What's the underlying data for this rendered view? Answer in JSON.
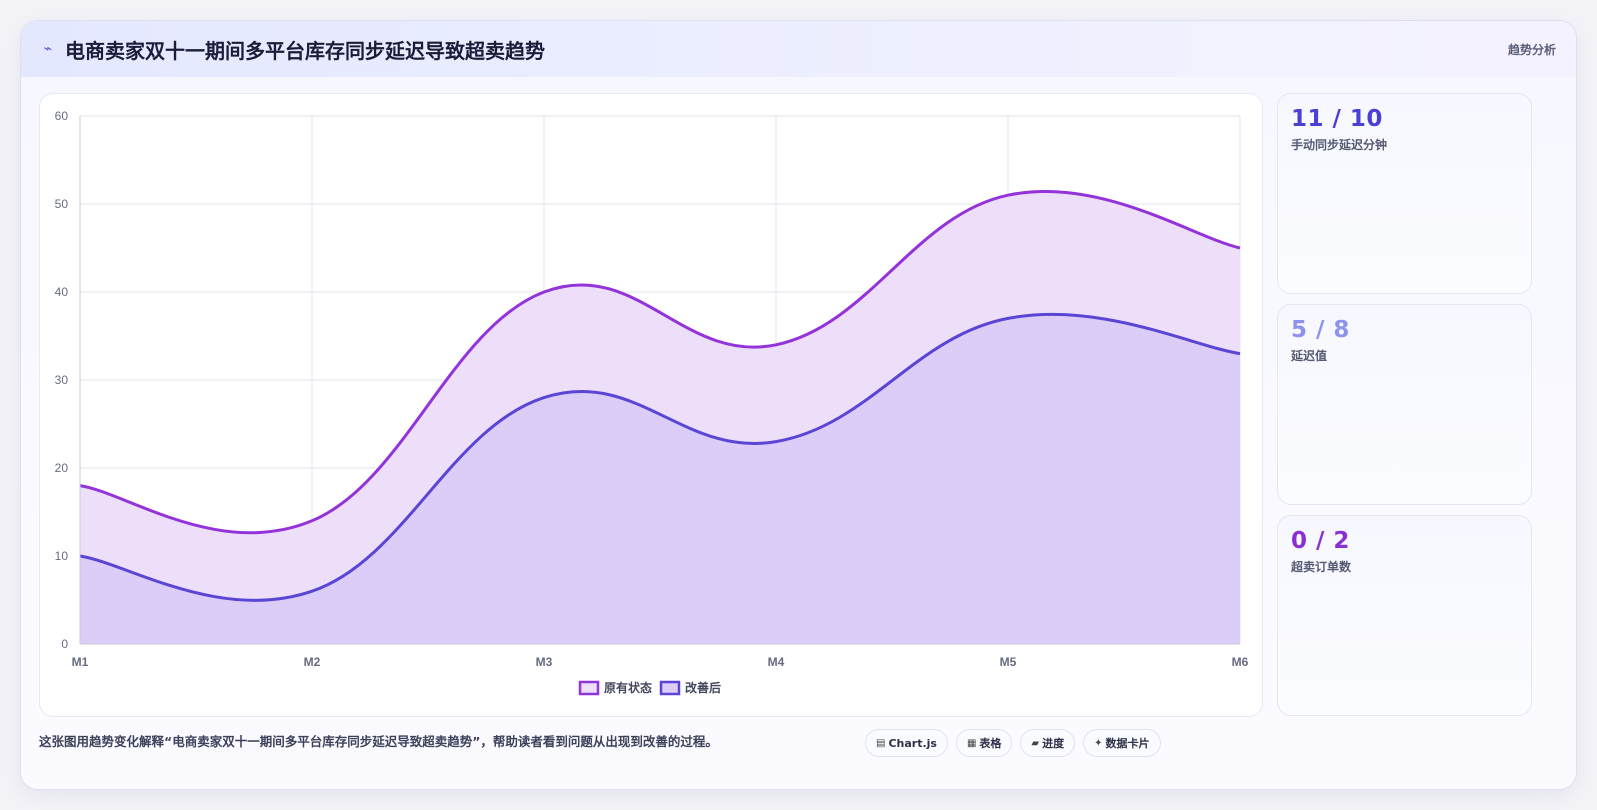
{
  "header": {
    "icon": "lightning-icon",
    "title": "电商卖家双十一期间多平台库存同步延迟导致超卖趋势",
    "tag": "趋势分析"
  },
  "chart_data": {
    "type": "area",
    "categories": [
      "M1",
      "M2",
      "M3",
      "M4",
      "M5",
      "M6"
    ],
    "ylim": [
      0,
      60
    ],
    "yticks": [
      "0",
      "10",
      "20",
      "30",
      "40",
      "50",
      "60"
    ],
    "grid": true,
    "legend_position": "bottom-center",
    "series": [
      {
        "name": "原有状态",
        "values": [
          18,
          14,
          40,
          34,
          51,
          45
        ],
        "color": "#9333d9",
        "fill": "#eddff9"
      },
      {
        "name": "改善后",
        "values": [
          10,
          6,
          28,
          23,
          37,
          33
        ],
        "color": "#5a45d4",
        "fill": "#dbcdf8"
      }
    ]
  },
  "stats": [
    {
      "value": "11 / 10",
      "label": "手动同步延迟分钟",
      "color": "#4b3fd6"
    },
    {
      "value": "5 / 8",
      "label": "延迟值",
      "color": "#8b93ec"
    },
    {
      "value": "0 / 2",
      "label": "超卖订单数",
      "color": "#8a2ed6"
    }
  ],
  "footer": {
    "note": "这张图用趋势变化解释“电商卖家双十一期间多平台库存同步延迟导致超卖趋势”，帮助读者看到问题从出现到改善的过程。",
    "chips": [
      {
        "icon": "chart-icon",
        "glyph": "▤",
        "label": "Chart.js"
      },
      {
        "icon": "table-icon",
        "glyph": "▦",
        "label": "表格"
      },
      {
        "icon": "progress-icon",
        "glyph": "▰",
        "label": "进度"
      },
      {
        "icon": "sparkle-icon",
        "glyph": "✦",
        "label": "数据卡片"
      }
    ]
  }
}
